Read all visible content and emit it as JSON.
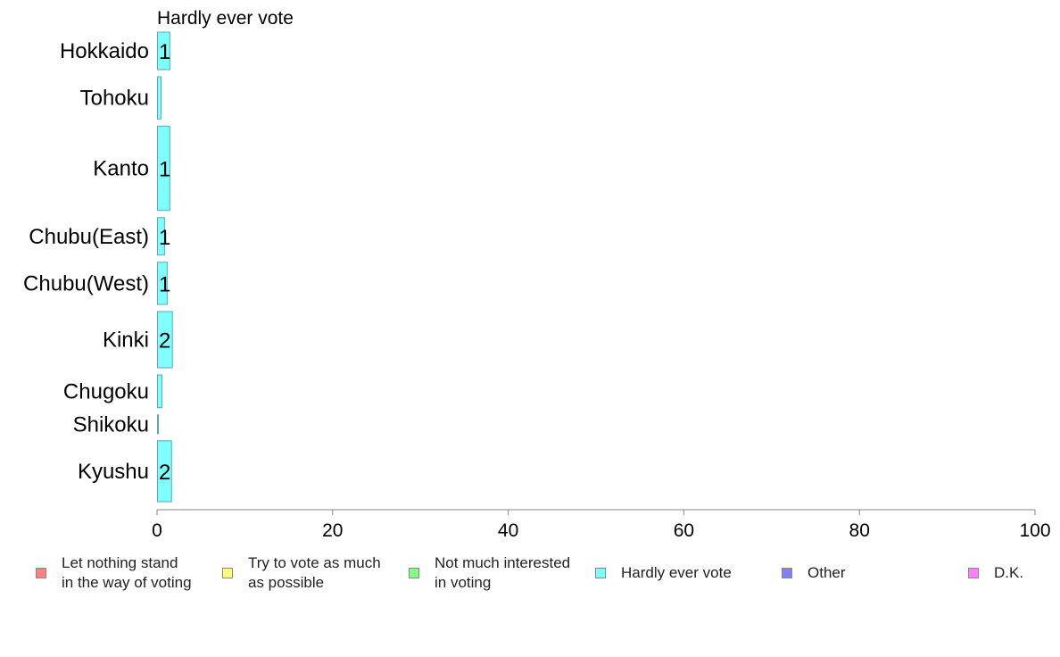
{
  "chart_data": {
    "type": "bar",
    "orientation": "horizontal",
    "title": "Hardly ever vote",
    "xlabel": "",
    "ylabel": "",
    "xlim": [
      0,
      100
    ],
    "x_ticks": [
      "0",
      "20",
      "40",
      "60",
      "80",
      "100"
    ],
    "grid": false,
    "legend_position": "bottom",
    "categories": [
      "Hokkaido",
      "Tohoku",
      "Kanto",
      "Chubu(East)",
      "Chubu(West)",
      "Kinki",
      "Chugoku",
      "Shikoku",
      "Kyushu"
    ],
    "values": [
      1.4,
      0.4,
      1.4,
      0.8,
      1.1,
      1.7,
      0.5,
      0.1,
      1.6
    ],
    "data_labels": [
      "1",
      "",
      "1",
      "1",
      "1",
      "2",
      "",
      "",
      "2"
    ],
    "sample_weights": [
      4,
      4.5,
      9,
      4,
      4.5,
      6,
      3.5,
      2,
      6.5
    ],
    "bar_color": "#80ffff",
    "bar_stroke": "#5aa8b0",
    "axis_color": "#888888",
    "legend": [
      {
        "label": "Let nothing stand\nin the way of voting",
        "color": "#ff8080"
      },
      {
        "label": "Try to vote as much\nas possible",
        "color": "#ffff80"
      },
      {
        "label": "Not much interested\nin voting",
        "color": "#80ff80"
      },
      {
        "label": "Hardly ever vote",
        "color": "#80ffff"
      },
      {
        "label": "Other",
        "color": "#8080ff"
      },
      {
        "label": "D.K.",
        "color": "#ff80ff"
      }
    ]
  }
}
